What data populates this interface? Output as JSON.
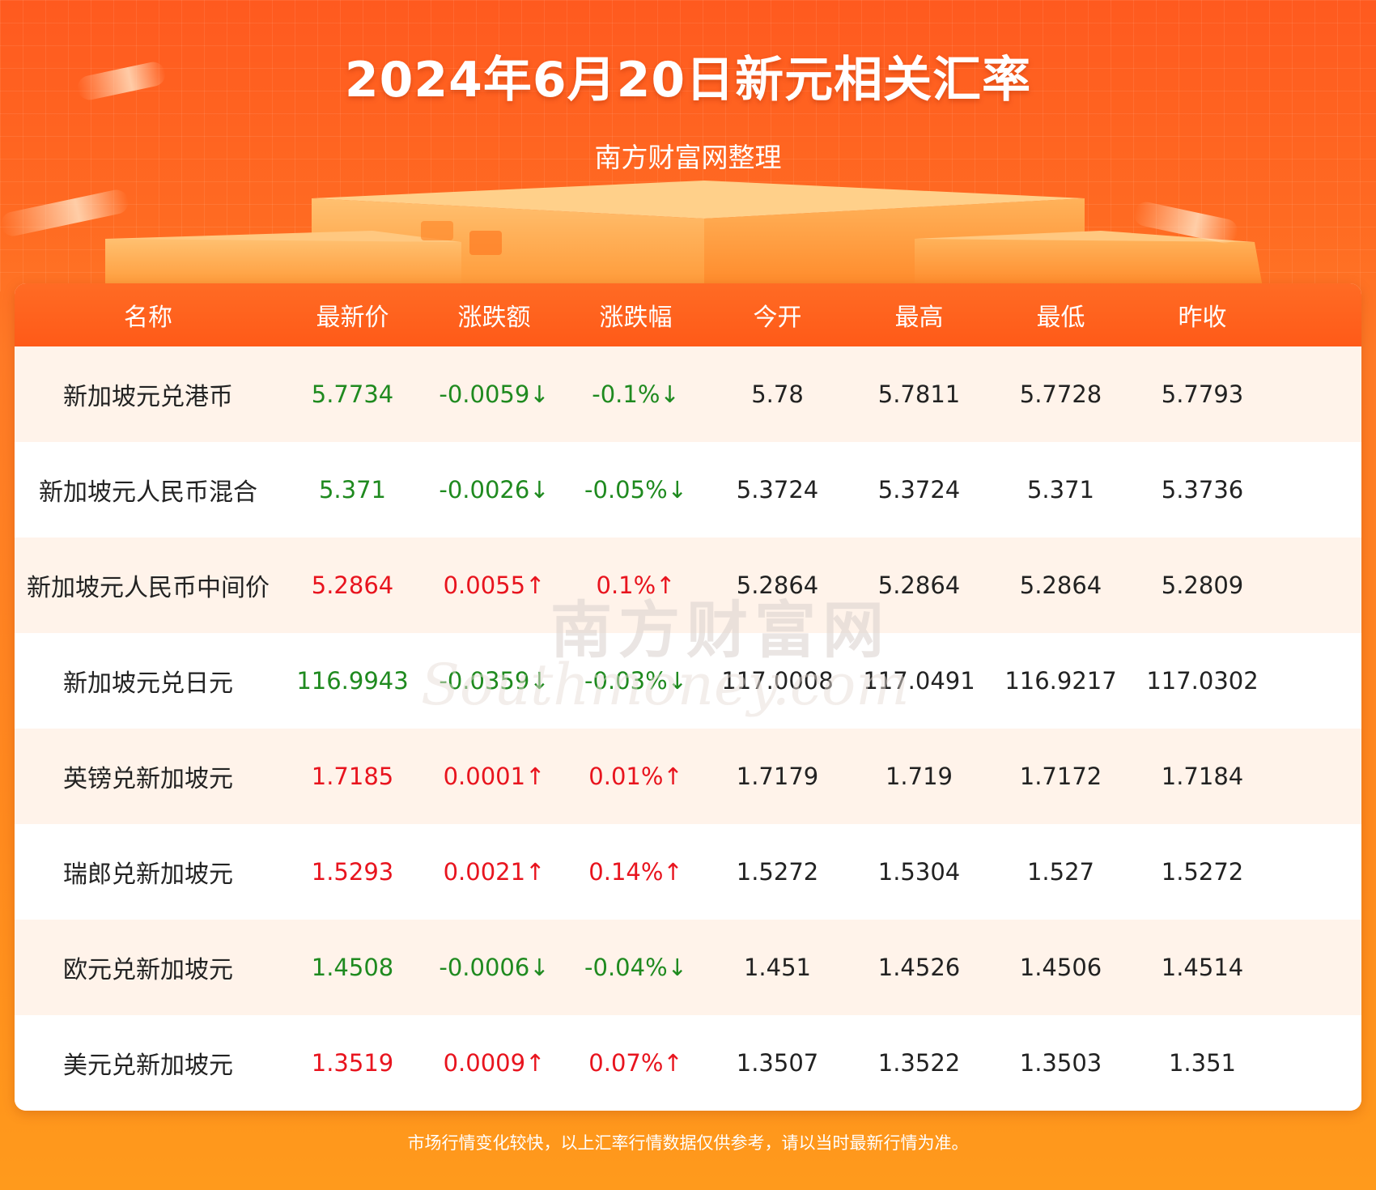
{
  "header": {
    "title": "2024年6月20日新元相关汇率",
    "subtitle": "南方财富网整理"
  },
  "watermark": {
    "cn": "南方财富网",
    "en": "Southmoney.com"
  },
  "table": {
    "columns": [
      "名称",
      "最新价",
      "涨跌额",
      "涨跌幅",
      "今开",
      "最高",
      "最低",
      "昨收"
    ],
    "rows": [
      {
        "name": "新加坡元兑港币",
        "latest": "5.7734",
        "change": "-0.0059↓",
        "pct": "-0.1%↓",
        "open": "5.78",
        "high": "5.7811",
        "low": "5.7728",
        "prev": "5.7793",
        "dir": "down"
      },
      {
        "name": "新加坡元人民币混合",
        "latest": "5.371",
        "change": "-0.0026↓",
        "pct": "-0.05%↓",
        "open": "5.3724",
        "high": "5.3724",
        "low": "5.371",
        "prev": "5.3736",
        "dir": "down"
      },
      {
        "name": "新加坡元人民币中间价",
        "latest": "5.2864",
        "change": "0.0055↑",
        "pct": "0.1%↑",
        "open": "5.2864",
        "high": "5.2864",
        "low": "5.2864",
        "prev": "5.2809",
        "dir": "up"
      },
      {
        "name": "新加坡元兑日元",
        "latest": "116.9943",
        "change": "-0.0359↓",
        "pct": "-0.03%↓",
        "open": "117.0008",
        "high": "117.0491",
        "low": "116.9217",
        "prev": "117.0302",
        "dir": "down"
      },
      {
        "name": "英镑兑新加坡元",
        "latest": "1.7185",
        "change": "0.0001↑",
        "pct": "0.01%↑",
        "open": "1.7179",
        "high": "1.719",
        "low": "1.7172",
        "prev": "1.7184",
        "dir": "up"
      },
      {
        "name": "瑞郎兑新加坡元",
        "latest": "1.5293",
        "change": "0.0021↑",
        "pct": "0.14%↑",
        "open": "1.5272",
        "high": "1.5304",
        "low": "1.527",
        "prev": "1.5272",
        "dir": "up"
      },
      {
        "name": "欧元兑新加坡元",
        "latest": "1.4508",
        "change": "-0.0006↓",
        "pct": "-0.04%↓",
        "open": "1.451",
        "high": "1.4526",
        "low": "1.4506",
        "prev": "1.4514",
        "dir": "down"
      },
      {
        "name": "美元兑新加坡元",
        "latest": "1.3519",
        "change": "0.0009↑",
        "pct": "0.07%↑",
        "open": "1.3507",
        "high": "1.3522",
        "low": "1.3503",
        "prev": "1.351",
        "dir": "up"
      }
    ]
  },
  "footer": {
    "note": "市场行情变化较快，以上汇率行情数据仅供参考，请以当时最新行情为准。"
  },
  "colors": {
    "up": "#e8141e",
    "down": "#1f8a1f",
    "header_bg": "#ff5a18",
    "accent": "#ff7a26"
  }
}
